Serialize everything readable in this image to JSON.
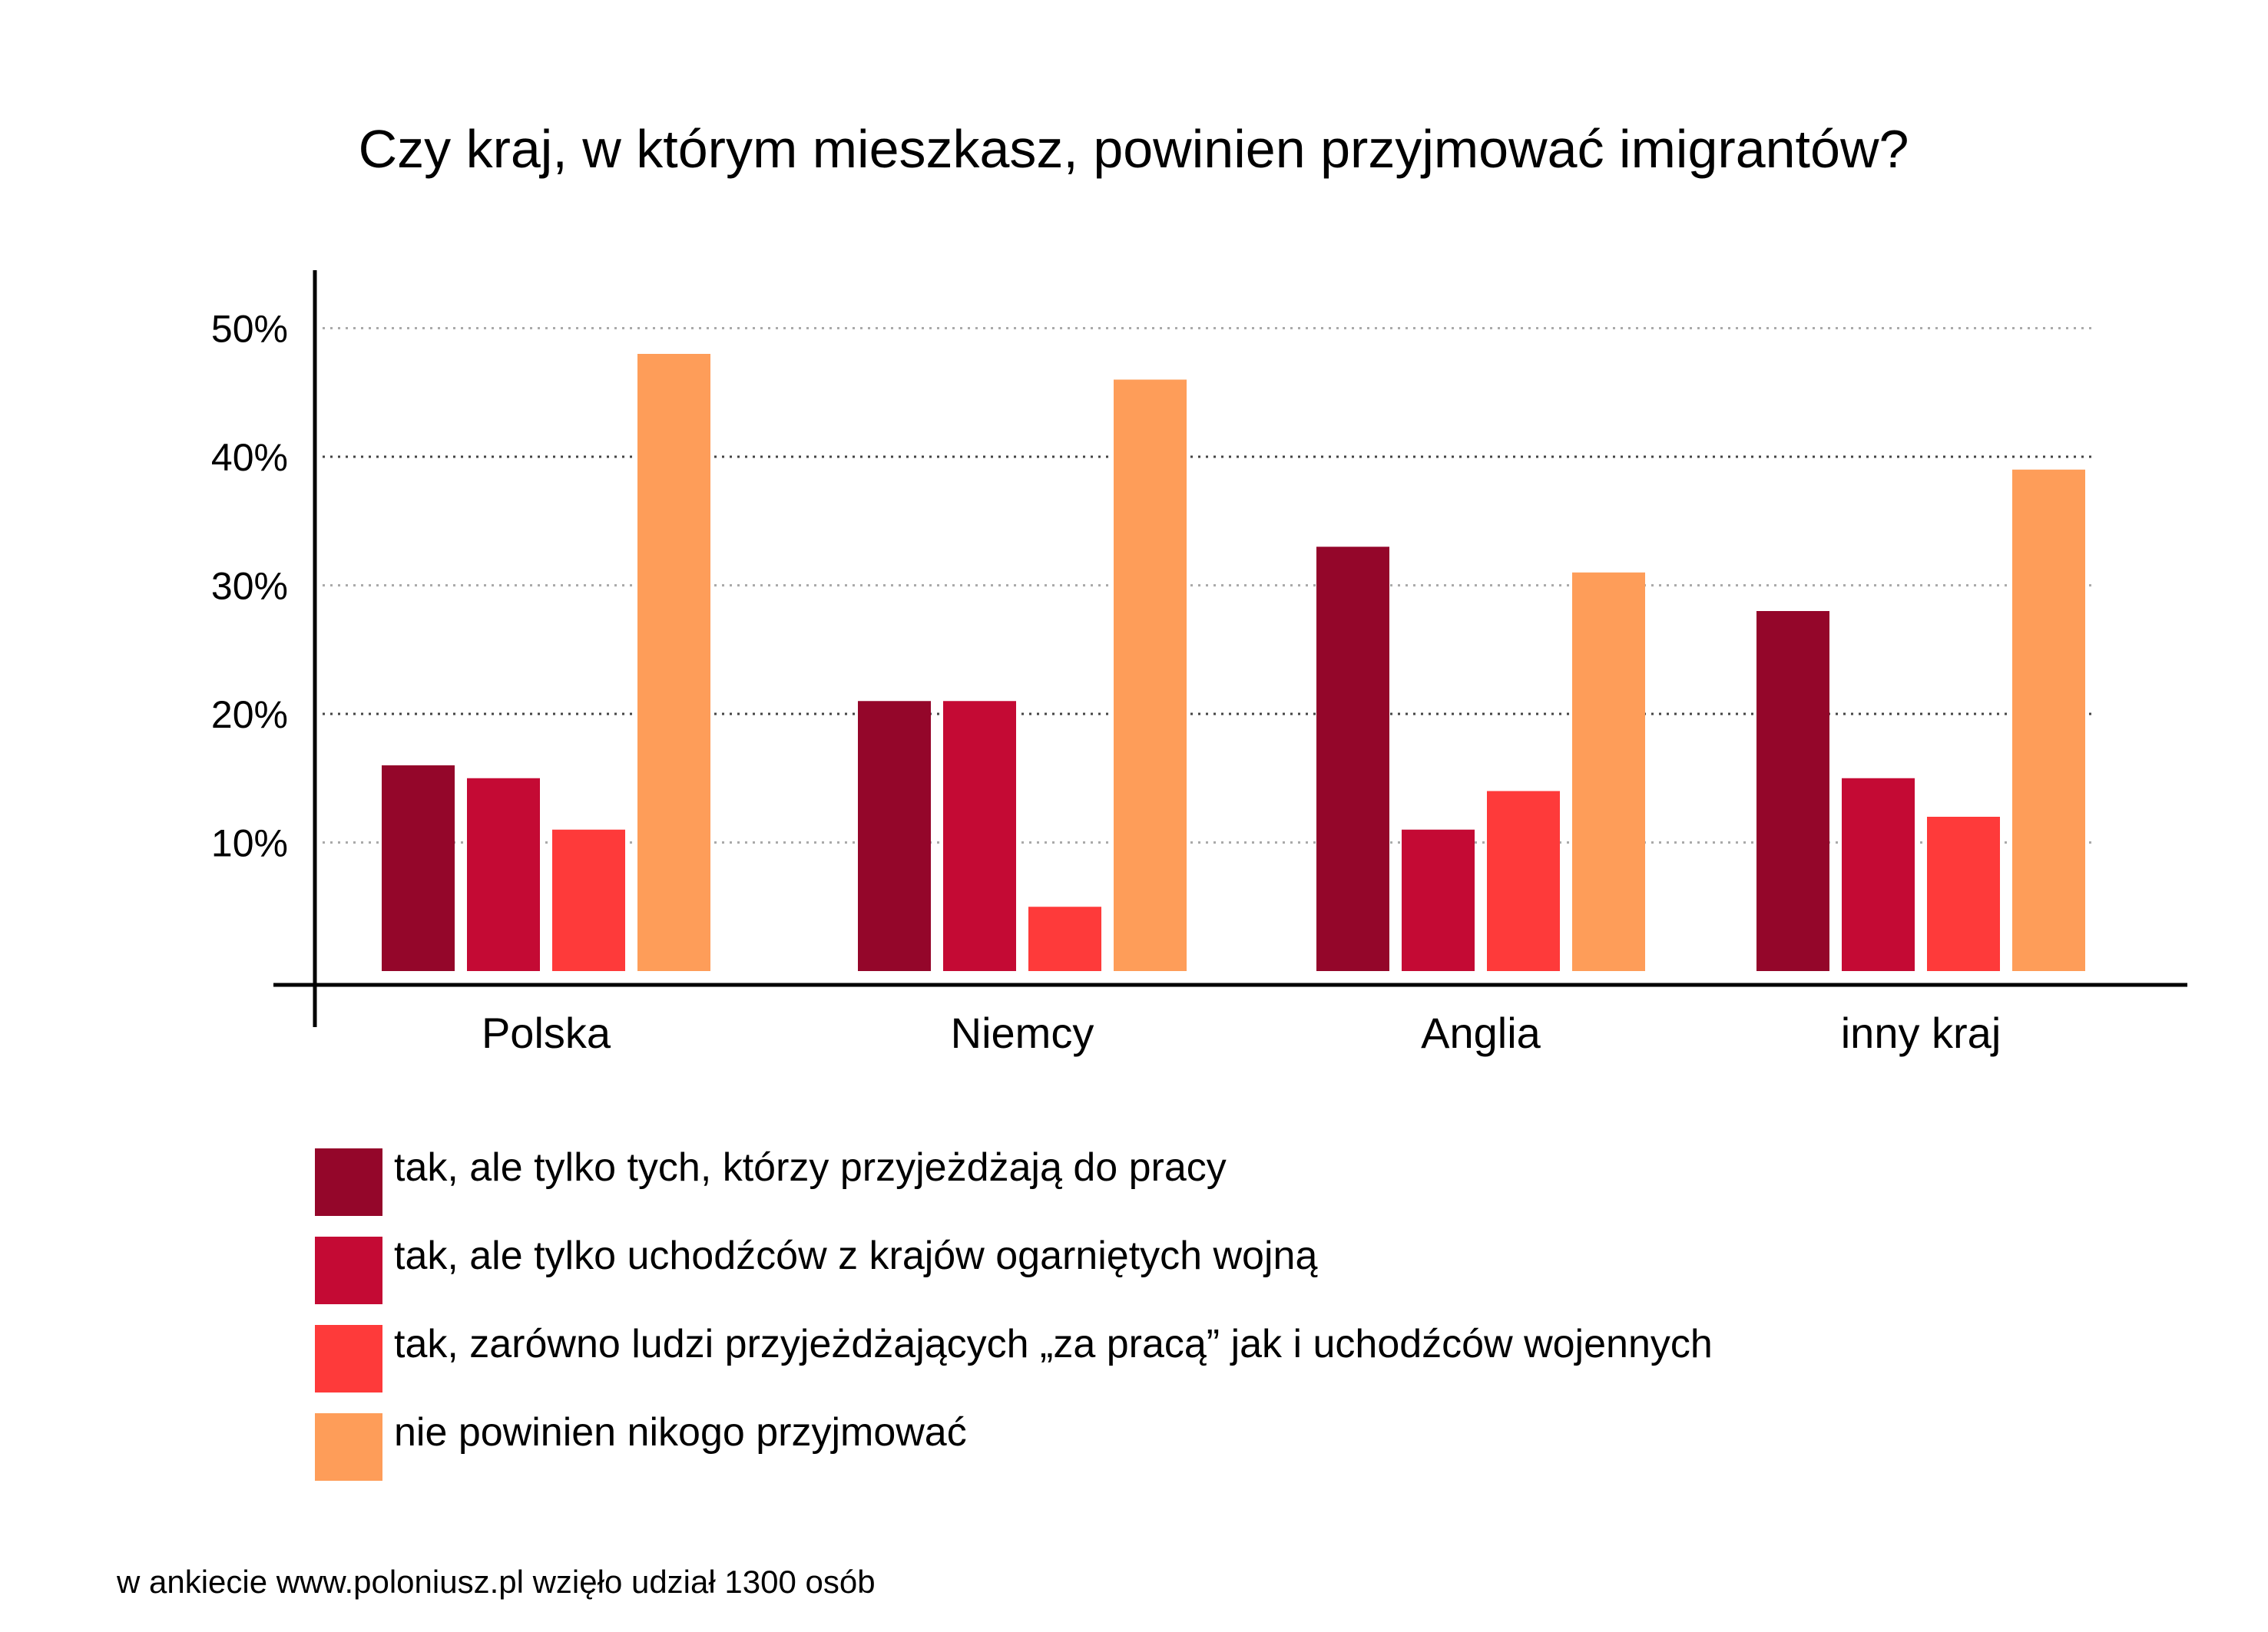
{
  "chart_data": {
    "type": "bar",
    "title": "Czy kraj, w którym mieszkasz, powinien przyjmować imigrantów?",
    "xlabel": "",
    "ylabel": "",
    "ylim": [
      0,
      55
    ],
    "yticks": [
      10,
      20,
      30,
      40,
      50
    ],
    "ytick_labels": [
      "10%",
      "20%",
      "30%",
      "40%",
      "50%"
    ],
    "grid": true,
    "legend_position": "bottom",
    "categories": [
      "Polska",
      "Niemcy",
      "Anglia",
      "inny kraj"
    ],
    "series": [
      {
        "name": "tak, ale tylko tych, którzy przyjeżdżają do pracy",
        "color": "#94062a",
        "values": [
          16,
          21,
          33,
          28
        ]
      },
      {
        "name": "tak, ale tylko uchodźców z krajów ogarniętych wojną",
        "color": "#c40a34",
        "values": [
          15,
          21,
          11,
          15
        ]
      },
      {
        "name": "tak, zarówno ludzi przyjeżdżających „za pracą” jak i uchodźców wojennych",
        "color": "#fe3a3a",
        "values": [
          11,
          5,
          14,
          12
        ]
      },
      {
        "name": "nie powinien nikogo przyjmować",
        "color": "#fe9d59",
        "values": [
          48,
          46,
          31,
          39
        ]
      }
    ]
  },
  "footnote": "w ankiecie www.poloniusz.pl wzięło udział 1300 osób"
}
